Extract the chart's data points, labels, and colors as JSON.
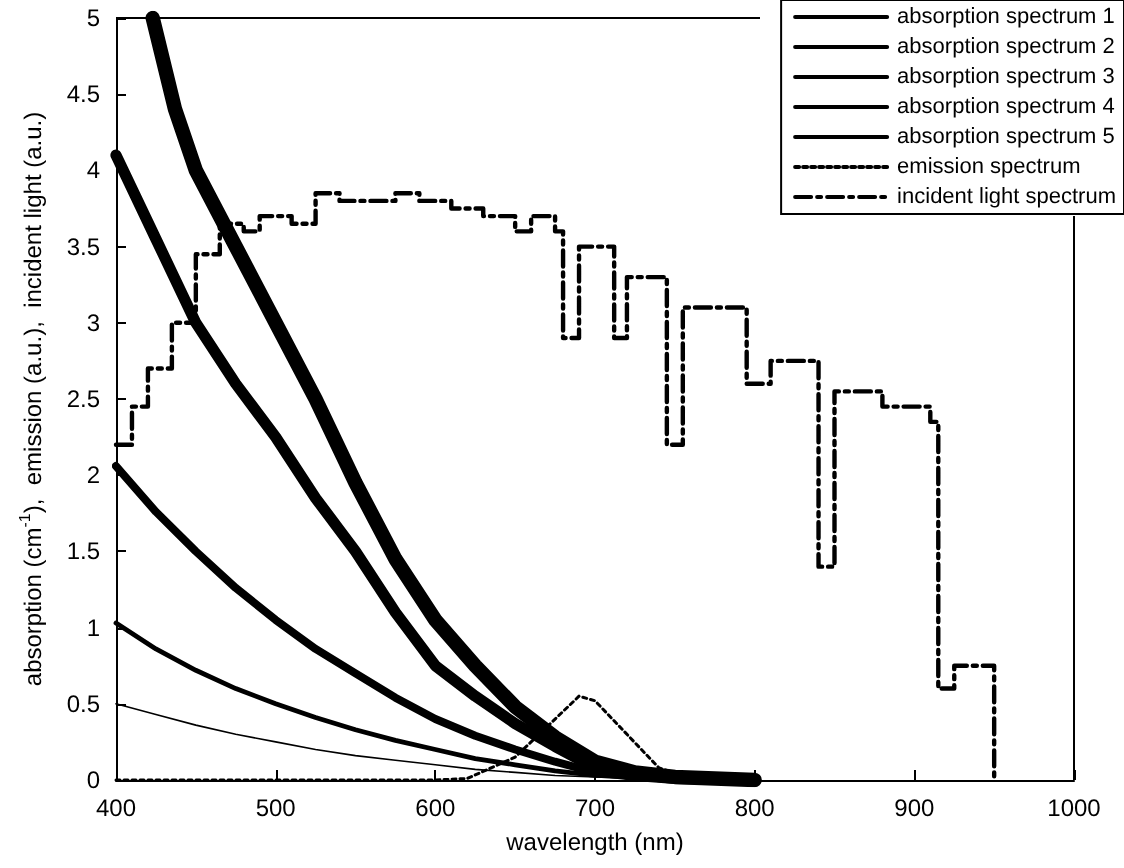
{
  "chart_data": {
    "type": "line",
    "xlabel": "wavelength (nm)",
    "ylabel": "absorption (cm$^{-1}$),  emission (a.u.),  incident light (a.u.)",
    "xlim": [
      400,
      1000
    ],
    "xticks": [
      400,
      500,
      600,
      700,
      800,
      900,
      1000
    ],
    "ylim": [
      0,
      5
    ],
    "yticks": [
      0,
      0.5,
      1,
      1.5,
      2,
      2.5,
      3,
      3.5,
      4,
      4.5,
      5
    ],
    "grid": false,
    "legend": "top right",
    "marker": "none",
    "series": [
      {
        "name": "absorption spectrum 1",
        "color": "#000000",
        "line_style": "solid",
        "x": [
          400,
          425,
          450,
          475,
          500,
          525,
          550,
          575,
          600,
          625,
          650,
          675,
          700,
          725,
          750,
          800
        ],
        "values": [
          0.5,
          0.43,
          0.36,
          0.3,
          0.25,
          0.2,
          0.16,
          0.13,
          0.1,
          0.07,
          0.05,
          0.03,
          0.02,
          0.01,
          0,
          0
        ]
      },
      {
        "name": "absorption spectrum 2",
        "color": "#000000",
        "line_style": "solid",
        "x": [
          400,
          425,
          450,
          475,
          500,
          525,
          550,
          575,
          600,
          625,
          650,
          675,
          700,
          725,
          750,
          800
        ],
        "values": [
          1.03,
          0.86,
          0.72,
          0.6,
          0.5,
          0.41,
          0.33,
          0.26,
          0.2,
          0.14,
          0.1,
          0.06,
          0.03,
          0.02,
          0.01,
          0
        ]
      },
      {
        "name": "absorption spectrum 3",
        "color": "#000000",
        "line_style": "solid",
        "x": [
          400,
          425,
          450,
          475,
          500,
          525,
          550,
          575,
          600,
          625,
          650,
          675,
          700,
          725,
          750,
          800
        ],
        "values": [
          2.06,
          1.76,
          1.5,
          1.26,
          1.05,
          0.86,
          0.7,
          0.54,
          0.4,
          0.29,
          0.2,
          0.12,
          0.05,
          0.02,
          0.01,
          0
        ]
      },
      {
        "name": "absorption spectrum 4",
        "color": "#000000",
        "line_style": "solid",
        "x": [
          400,
          425,
          450,
          475,
          500,
          525,
          550,
          575,
          600,
          625,
          650,
          675,
          700,
          725,
          750,
          800
        ],
        "values": [
          4.1,
          3.55,
          3.0,
          2.6,
          2.25,
          1.85,
          1.5,
          1.1,
          0.75,
          0.55,
          0.37,
          0.22,
          0.08,
          0.03,
          0.01,
          0
        ]
      },
      {
        "name": "absorption spectrum 5",
        "color": "#000000",
        "line_style": "solid",
        "x": [
          423,
          437,
          450,
          475,
          500,
          525,
          550,
          575,
          600,
          625,
          650,
          675,
          700,
          725,
          750,
          800
        ],
        "values": [
          5.0,
          4.4,
          4.0,
          3.5,
          3.0,
          2.5,
          1.95,
          1.45,
          1.05,
          0.75,
          0.48,
          0.28,
          0.12,
          0.05,
          0.02,
          0
        ]
      },
      {
        "name": "emission spectrum",
        "color": "#000000",
        "line_style": "dotted",
        "x": [
          400,
          600,
          620,
          650,
          670,
          690,
          700,
          720,
          740,
          760,
          800
        ],
        "values": [
          0,
          0,
          0.01,
          0.15,
          0.35,
          0.55,
          0.52,
          0.3,
          0.08,
          0.01,
          0
        ]
      },
      {
        "name": "incident light spectrum",
        "type": "step",
        "color": "#000000",
        "line_style": "dashdot",
        "x": [
          400,
          410,
          420,
          435,
          440,
          450,
          465,
          480,
          490,
          510,
          525,
          540,
          575,
          590,
          610,
          630,
          650,
          660,
          675,
          680,
          690,
          712,
          720,
          745,
          755,
          795,
          810,
          840,
          850,
          880,
          910,
          915,
          925,
          950
        ],
        "values": [
          2.2,
          2.45,
          2.7,
          3.0,
          3.0,
          3.45,
          3.65,
          3.6,
          3.7,
          3.65,
          3.85,
          3.8,
          3.85,
          3.8,
          3.75,
          3.7,
          3.6,
          3.7,
          3.6,
          2.9,
          3.5,
          2.9,
          3.3,
          2.2,
          3.1,
          2.6,
          2.75,
          1.4,
          2.55,
          2.45,
          2.35,
          0.6,
          0.75,
          0
        ]
      }
    ]
  }
}
